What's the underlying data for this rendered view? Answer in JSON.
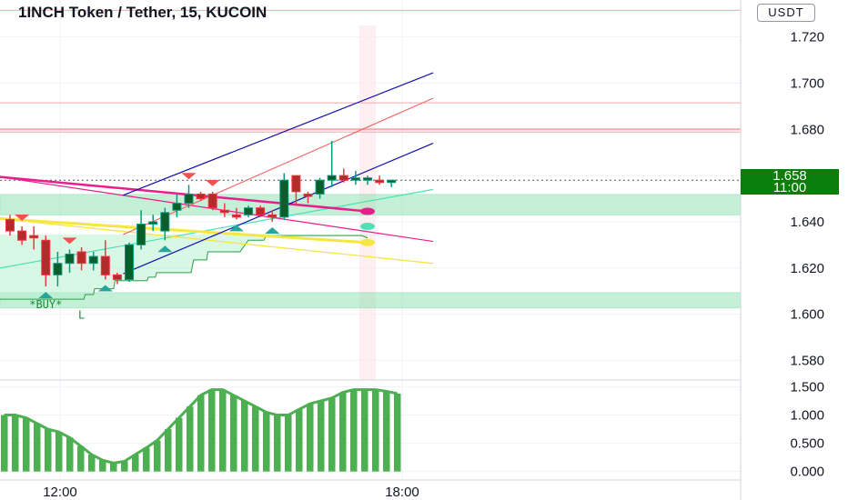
{
  "header": {
    "title": "1INCH Token / Tether, 15, KUCOIN",
    "currency": "USDT"
  },
  "price_tag": {
    "price": "1.658",
    "countdown": "11:00"
  },
  "signal_label": "*BUY*",
  "zone_label": "L",
  "colors": {
    "up": "#089981",
    "down": "#f23645",
    "zone": "#00d26a",
    "channel": "#1111aa",
    "channel_mid": "#f06b6b",
    "magenta": "#e91e8c",
    "yellow": "#f5e642",
    "teal": "#4fe0b3",
    "osc": "#4caf50",
    "tag": "#0a7d0a"
  },
  "chart_data": [
    {
      "type": "candlestick",
      "title": "1INCH Token / Tether, 15, KUCOIN",
      "price_axis": [
        "1.720",
        "1.700",
        "1.680",
        "1.660",
        "1.640",
        "1.620",
        "1.600",
        "1.580"
      ],
      "price_axis_values": [
        1.72,
        1.7,
        1.68,
        1.66,
        1.64,
        1.62,
        1.6,
        1.58
      ],
      "time_axis": [
        "12:00",
        "18:00"
      ],
      "ylim": [
        1.5715,
        1.736
      ],
      "last_price": 1.658,
      "candles": [
        {
          "o": 1.641,
          "h": 1.643,
          "l": 1.634,
          "c": 1.636
        },
        {
          "o": 1.636,
          "h": 1.638,
          "l": 1.63,
          "c": 1.632
        },
        {
          "o": 1.634,
          "h": 1.638,
          "l": 1.628,
          "c": 1.633
        },
        {
          "o": 1.632,
          "h": 1.634,
          "l": 1.612,
          "c": 1.617
        },
        {
          "o": 1.617,
          "h": 1.627,
          "l": 1.612,
          "c": 1.622
        },
        {
          "o": 1.622,
          "h": 1.628,
          "l": 1.618,
          "c": 1.626
        },
        {
          "o": 1.627,
          "h": 1.629,
          "l": 1.619,
          "c": 1.622
        },
        {
          "o": 1.622,
          "h": 1.627,
          "l": 1.619,
          "c": 1.625
        },
        {
          "o": 1.625,
          "h": 1.632,
          "l": 1.615,
          "c": 1.617
        },
        {
          "o": 1.617,
          "h": 1.618,
          "l": 1.613,
          "c": 1.615
        },
        {
          "o": 1.615,
          "h": 1.631,
          "l": 1.614,
          "c": 1.63
        },
        {
          "o": 1.63,
          "h": 1.645,
          "l": 1.628,
          "c": 1.639
        },
        {
          "o": 1.639,
          "h": 1.643,
          "l": 1.636,
          "c": 1.64
        },
        {
          "o": 1.636,
          "h": 1.646,
          "l": 1.632,
          "c": 1.644
        },
        {
          "o": 1.645,
          "h": 1.652,
          "l": 1.642,
          "c": 1.648
        },
        {
          "o": 1.648,
          "h": 1.656,
          "l": 1.646,
          "c": 1.652
        },
        {
          "o": 1.652,
          "h": 1.653,
          "l": 1.649,
          "c": 1.65
        },
        {
          "o": 1.652,
          "h": 1.653,
          "l": 1.645,
          "c": 1.646
        },
        {
          "o": 1.645,
          "h": 1.648,
          "l": 1.642,
          "c": 1.644
        },
        {
          "o": 1.643,
          "h": 1.646,
          "l": 1.641,
          "c": 1.642
        },
        {
          "o": 1.643,
          "h": 1.647,
          "l": 1.642,
          "c": 1.646
        },
        {
          "o": 1.646,
          "h": 1.647,
          "l": 1.642,
          "c": 1.643
        },
        {
          "o": 1.643,
          "h": 1.645,
          "l": 1.64,
          "c": 1.642
        },
        {
          "o": 1.642,
          "h": 1.661,
          "l": 1.641,
          "c": 1.658
        },
        {
          "o": 1.66,
          "h": 1.66,
          "l": 1.647,
          "c": 1.653
        },
        {
          "o": 1.652,
          "h": 1.653,
          "l": 1.648,
          "c": 1.651
        },
        {
          "o": 1.652,
          "h": 1.659,
          "l": 1.65,
          "c": 1.658
        },
        {
          "o": 1.658,
          "h": 1.675,
          "l": 1.655,
          "c": 1.66
        },
        {
          "o": 1.66,
          "h": 1.663,
          "l": 1.657,
          "c": 1.658
        },
        {
          "o": 1.658,
          "h": 1.662,
          "l": 1.656,
          "c": 1.659
        },
        {
          "o": 1.658,
          "h": 1.66,
          "l": 1.656,
          "c": 1.659
        },
        {
          "o": 1.658,
          "h": 1.66,
          "l": 1.656,
          "c": 1.657
        },
        {
          "o": 1.657,
          "h": 1.658,
          "l": 1.655,
          "c": 1.658
        }
      ],
      "support_zones": [
        [
          1.643,
          1.6518
        ],
        [
          1.6027,
          1.6093
        ]
      ],
      "resistance_lines": [
        1.7315,
        1.6915,
        1.68
      ],
      "channel": {
        "upper": {
          "from": [
            9.5,
            1.6515
          ],
          "to": [
            35.5,
            1.7045
          ]
        },
        "lower": {
          "from": [
            9.5,
            1.6175
          ],
          "to": [
            35.5,
            1.674
          ]
        },
        "middle": {
          "from": [
            9.5,
            1.6345
          ],
          "to": [
            35.5,
            1.6935
          ]
        }
      },
      "magenta_line": {
        "from": [
          -1,
          1.6595
        ],
        "to": [
          35.5,
          1.6315
        ]
      },
      "yellow_line": {
        "from": [
          -1,
          1.6414
        ],
        "to": [
          35.5,
          1.622
        ]
      },
      "teal_line": {
        "from": [
          -1,
          1.6198
        ],
        "to": [
          35.5,
          1.654
        ]
      },
      "trail_stop": [
        [
          -1,
          1.6065
        ],
        [
          6.2,
          1.6065
        ],
        [
          6.3,
          1.6085
        ],
        [
          7.0,
          1.6085
        ],
        [
          7.1,
          1.611
        ],
        [
          8.7,
          1.611
        ],
        [
          8.8,
          1.6145
        ],
        [
          11.5,
          1.6145
        ],
        [
          11.6,
          1.616
        ],
        [
          12.2,
          1.616
        ],
        [
          12.3,
          1.618
        ],
        [
          15.2,
          1.618
        ],
        [
          15.4,
          1.6235
        ],
        [
          16.5,
          1.6235
        ],
        [
          16.6,
          1.627
        ],
        [
          19.3,
          1.627
        ],
        [
          20.0,
          1.632
        ],
        [
          21.3,
          1.632
        ],
        [
          21.5,
          1.634
        ],
        [
          29.5,
          1.634
        ],
        [
          30.0,
          1.633
        ]
      ],
      "markers": [
        {
          "x": 30.0,
          "y": 1.6445,
          "color": "magenta"
        },
        {
          "x": 30.0,
          "y": 1.638,
          "color": "teal"
        },
        {
          "x": 30.0,
          "y": 1.631,
          "color": "yellow"
        }
      ],
      "sell_signals": [
        1,
        5,
        15,
        17
      ],
      "buy_signals": [
        3,
        8,
        13,
        19,
        22
      ],
      "buy_label_index": 3,
      "oscillator": {
        "axis": [
          "1.500",
          "1.000",
          "0.500",
          "0.000"
        ],
        "axis_values": [
          1.5,
          1.0,
          0.5,
          0.0
        ],
        "ylim": [
          -0.15,
          1.62
        ],
        "values": [
          1.0,
          1.0,
          0.95,
          0.85,
          0.75,
          0.7,
          0.6,
          0.45,
          0.3,
          0.2,
          0.15,
          0.18,
          0.3,
          0.42,
          0.55,
          0.75,
          0.95,
          1.15,
          1.35,
          1.45,
          1.45,
          1.35,
          1.25,
          1.15,
          1.05,
          1.0,
          1.0,
          1.1,
          1.2,
          1.25,
          1.3,
          1.4,
          1.45,
          1.45,
          1.45,
          1.42,
          1.38
        ]
      }
    }
  ]
}
